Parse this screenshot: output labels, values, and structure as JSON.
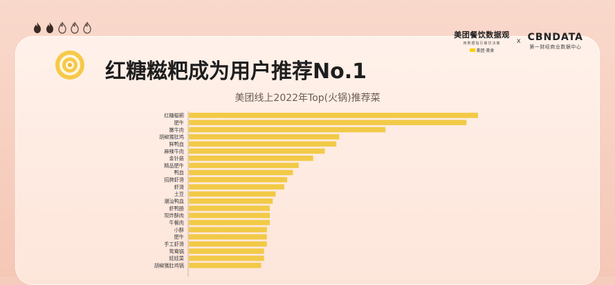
{
  "header": {
    "flame_count_filled": 2,
    "flame_count_total": 5,
    "logo_meituan": {
      "name": "美团餐饮数据观",
      "tagline": "用数据指引餐饮决策",
      "brand": "美团·美食"
    },
    "logo_separator": "x",
    "logo_cbn": {
      "name": "CBNDATA",
      "tagline": "第一财经商业数据中心"
    }
  },
  "headline": "红糖糍粑成为用户推荐No.1",
  "colors": {
    "bar": "#f2ca47",
    "accent": "#f3b52b",
    "axis": "#c9b7ae"
  },
  "icons": {
    "flame": "flame-icon",
    "badge": "target-icon"
  },
  "chart_data": {
    "type": "bar",
    "orientation": "horizontal",
    "title": "美团线上2022年Top(火锅)推荐菜",
    "xlabel": "",
    "ylabel": "",
    "categories": [
      "红糖糍粑",
      "肥牛",
      "嫩牛肉",
      "胡椒猪肚鸡",
      "鲜鸭血",
      "麻辣牛肉",
      "金针菇",
      "精品肥牛",
      "鸭血",
      "招牌虾滑",
      "虾滑",
      "土豆",
      "潮汕鸭血",
      "虾鸭肠",
      "现炸酥肉",
      "牛餐肉",
      "小酥",
      "肥牛",
      "手工虾滑",
      "鸳鸯锅",
      "娃娃菜",
      "胡椒猪肚鸡锅"
    ],
    "values": [
      100,
      96,
      68,
      52,
      51,
      47,
      43,
      38,
      36,
      34,
      33,
      30,
      29,
      28,
      28,
      28,
      27,
      27,
      27,
      26,
      26,
      25
    ],
    "xlim": [
      0,
      100
    ],
    "grid": false
  }
}
